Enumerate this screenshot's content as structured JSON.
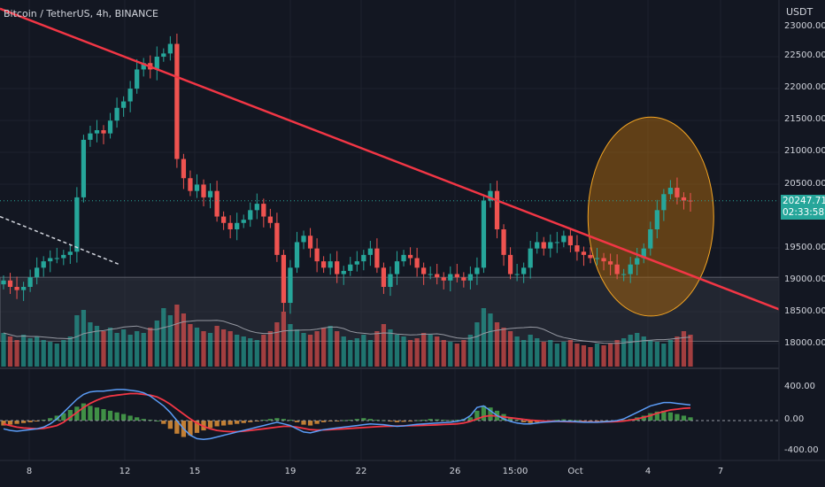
{
  "header": {
    "title": "Bitcoin / TetherUS, 4h, BINANCE"
  },
  "price_axis": {
    "unit": "USDT",
    "ticks": [
      "23000.00",
      "22500.00",
      "22000.00",
      "21500.00",
      "21000.00",
      "20500.00",
      "19500.00",
      "19000.00",
      "18500.00",
      "18000.00"
    ]
  },
  "macd_axis": {
    "ticks": [
      "400.00",
      "0.00",
      "-400.00"
    ]
  },
  "time_axis": {
    "ticks": [
      "8",
      "12",
      "15",
      "19",
      "22",
      "26",
      "15:00",
      "Oct",
      "4",
      "7"
    ]
  },
  "current_price": {
    "value": "20247.71",
    "countdown": "02:33:58"
  },
  "colors": {
    "background": "#131722",
    "up": "#26a69a",
    "down": "#ef5350",
    "trendline": "#f23645",
    "ellipse_fill": "#a0600f",
    "ellipse_stroke": "#f5a623",
    "zone": "#363a45",
    "macd_line": "#5b9cf6",
    "signal_line": "#f23645",
    "hist_pos": "#4caf50",
    "hist_neg": "#ef9a3a",
    "volume_ma": "#9598a1"
  },
  "chart_data": [
    {
      "type": "line",
      "subtype": "candlestick",
      "title": "Bitcoin / TetherUS, 4h, BINANCE",
      "ylabel": "USDT",
      "ylim": [
        17800,
        23200
      ],
      "x_labels": [
        "8",
        "12",
        "15",
        "19",
        "22",
        "26",
        "15:00",
        "Oct",
        "4",
        "7"
      ],
      "series": [
        {
          "name": "close",
          "values": [
            19000,
            18900,
            18850,
            18900,
            19050,
            19200,
            19300,
            19350,
            19350,
            19400,
            19450,
            20300,
            21200,
            21300,
            21350,
            21300,
            21500,
            21700,
            21800,
            22000,
            22300,
            22400,
            22300,
            22500,
            22550,
            22700,
            20900,
            20600,
            20400,
            20500,
            20300,
            20400,
            20000,
            19900,
            19800,
            19900,
            19950,
            20100,
            20200,
            20000,
            19900,
            19400,
            18650,
            19200,
            19600,
            19700,
            19500,
            19300,
            19200,
            19300,
            19100,
            19150,
            19250,
            19300,
            19400,
            19500,
            19200,
            18900,
            19100,
            19300,
            19400,
            19350,
            19200,
            19100,
            19100,
            19050,
            19000,
            19100,
            19050,
            19000,
            19100,
            19200,
            20250,
            20400,
            19800,
            19400,
            19100,
            19100,
            19200,
            19500,
            19600,
            19500,
            19600,
            19600,
            19700,
            19550,
            19450,
            19400,
            19350,
            19350,
            19300,
            19250,
            19100,
            19100,
            19250,
            19350,
            19500,
            19800,
            20100,
            20350,
            20450,
            20300,
            20250,
            20247
          ]
        },
        {
          "name": "trendline",
          "x": [
            0,
            116
          ],
          "values": [
            23250,
            18550
          ]
        }
      ],
      "annotations": [
        "descending trendline",
        "highlighted ellipse around breakout",
        "support zone 18050-19050"
      ]
    },
    {
      "type": "bar",
      "title": "",
      "series": [
        {
          "name": "volume",
          "values": [
            38,
            34,
            30,
            36,
            32,
            34,
            30,
            28,
            26,
            30,
            34,
            58,
            64,
            50,
            46,
            40,
            44,
            38,
            42,
            36,
            40,
            38,
            44,
            52,
            66,
            58,
            70,
            60,
            48,
            44,
            40,
            38,
            46,
            42,
            40,
            36,
            34,
            32,
            30,
            36,
            40,
            50,
            62,
            48,
            42,
            38,
            36,
            40,
            44,
            46,
            40,
            34,
            30,
            32,
            36,
            30,
            40,
            48,
            42,
            36,
            34,
            30,
            32,
            38,
            36,
            34,
            30,
            28,
            26,
            30,
            36,
            50,
            66,
            60,
            50,
            44,
            40,
            34,
            30,
            36,
            32,
            28,
            30,
            26,
            28,
            30,
            26,
            24,
            22,
            26,
            24,
            26,
            30,
            32,
            36,
            38,
            34,
            30,
            28,
            26,
            30,
            34,
            40,
            36
          ]
        }
      ]
    },
    {
      "type": "bar",
      "title": "",
      "ylim": [
        -450,
        450
      ],
      "series": [
        {
          "name": "histogram",
          "values": [
            -60,
            -50,
            -40,
            -30,
            -20,
            -10,
            10,
            30,
            60,
            90,
            130,
            170,
            210,
            180,
            160,
            140,
            120,
            100,
            80,
            60,
            40,
            20,
            10,
            0,
            -40,
            -100,
            -160,
            -200,
            -180,
            -150,
            -120,
            -90,
            -70,
            -60,
            -50,
            -40,
            -30,
            -20,
            -10,
            10,
            20,
            30,
            20,
            10,
            -20,
            -50,
            -60,
            -40,
            -20,
            -10,
            -5,
            5,
            10,
            20,
            30,
            20,
            10,
            5,
            -10,
            -20,
            -15,
            -10,
            5,
            10,
            20,
            15,
            10,
            5,
            10,
            20,
            40,
            120,
            180,
            160,
            120,
            80,
            40,
            10,
            -20,
            -30,
            -20,
            -10,
            5,
            10,
            15,
            10,
            5,
            -5,
            -10,
            -10,
            -15,
            -10,
            -5,
            10,
            20,
            40,
            60,
            90,
            110,
            120,
            100,
            80,
            60,
            40
          ]
        },
        {
          "name": "macd",
          "values": [
            -100,
            -120,
            -130,
            -120,
            -110,
            -100,
            -80,
            -40,
            20,
            100,
            180,
            260,
            320,
            350,
            360,
            360,
            370,
            380,
            380,
            370,
            360,
            340,
            300,
            240,
            180,
            100,
            0,
            -100,
            -180,
            -220,
            -230,
            -220,
            -200,
            -180,
            -160,
            -140,
            -120,
            -100,
            -80,
            -60,
            -40,
            -20,
            -40,
            -60,
            -100,
            -140,
            -150,
            -130,
            -110,
            -100,
            -90,
            -80,
            -70,
            -60,
            -50,
            -40,
            -45,
            -50,
            -60,
            -70,
            -65,
            -55,
            -45,
            -40,
            -35,
            -30,
            -25,
            -20,
            -10,
            10,
            60,
            160,
            180,
            120,
            60,
            20,
            -10,
            -30,
            -40,
            -40,
            -30,
            -20,
            -15,
            -10,
            -10,
            -10,
            -15,
            -20,
            -20,
            -20,
            -15,
            -10,
            0,
            20,
            60,
            100,
            140,
            180,
            200,
            220,
            220,
            210,
            200,
            190
          ]
        },
        {
          "name": "signal",
          "values": [
            -40,
            -60,
            -80,
            -90,
            -95,
            -100,
            -95,
            -80,
            -60,
            -20,
            40,
            100,
            160,
            210,
            250,
            280,
            300,
            310,
            320,
            330,
            330,
            320,
            310,
            290,
            250,
            200,
            140,
            80,
            20,
            -30,
            -70,
            -100,
            -120,
            -130,
            -135,
            -135,
            -130,
            -120,
            -110,
            -100,
            -90,
            -80,
            -70,
            -70,
            -80,
            -95,
            -110,
            -115,
            -115,
            -110,
            -105,
            -100,
            -95,
            -90,
            -85,
            -80,
            -75,
            -70,
            -68,
            -66,
            -64,
            -62,
            -60,
            -58,
            -55,
            -52,
            -48,
            -44,
            -40,
            -30,
            -10,
            20,
            50,
            60,
            55,
            45,
            35,
            25,
            15,
            5,
            0,
            -5,
            -8,
            -10,
            -12,
            -14,
            -15,
            -16,
            -17,
            -18,
            -16,
            -14,
            -12,
            -5,
            5,
            20,
            40,
            60,
            90,
            110,
            130,
            140,
            150,
            155
          ]
        },
        {
          "name": "zero_line",
          "values": [
            0
          ]
        }
      ]
    }
  ]
}
